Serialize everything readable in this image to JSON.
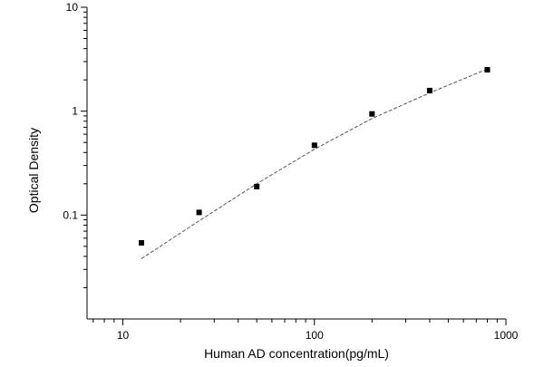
{
  "chart_data": {
    "type": "scatter",
    "title": "",
    "xlabel": "Human AD concentration(pg/mL)",
    "ylabel": "Optical Density",
    "x_scale": "log",
    "y_scale": "log",
    "xlim": [
      6.5,
      1000
    ],
    "ylim": [
      0.01,
      10
    ],
    "x_ticks": [
      10,
      100,
      1000
    ],
    "x_tick_labels": [
      "10",
      "100",
      "1000"
    ],
    "y_ticks": [
      0.1,
      1,
      10
    ],
    "y_tick_labels": [
      "0.1",
      "1",
      "10"
    ],
    "grid": false,
    "legend": "none",
    "marker": "square",
    "marker_color": "#000000",
    "fit_line": "dashed",
    "fit_line_color": "#444444",
    "points": {
      "x": [
        12.5,
        25,
        50,
        100,
        200,
        400,
        800
      ],
      "y": [
        0.054,
        0.106,
        0.188,
        0.47,
        0.94,
        1.58,
        2.5
      ]
    },
    "fit_curve": {
      "x": [
        12.5,
        25,
        50,
        100,
        200,
        400,
        800
      ],
      "y": [
        0.038,
        0.088,
        0.2,
        0.43,
        0.85,
        1.5,
        2.55
      ]
    }
  }
}
